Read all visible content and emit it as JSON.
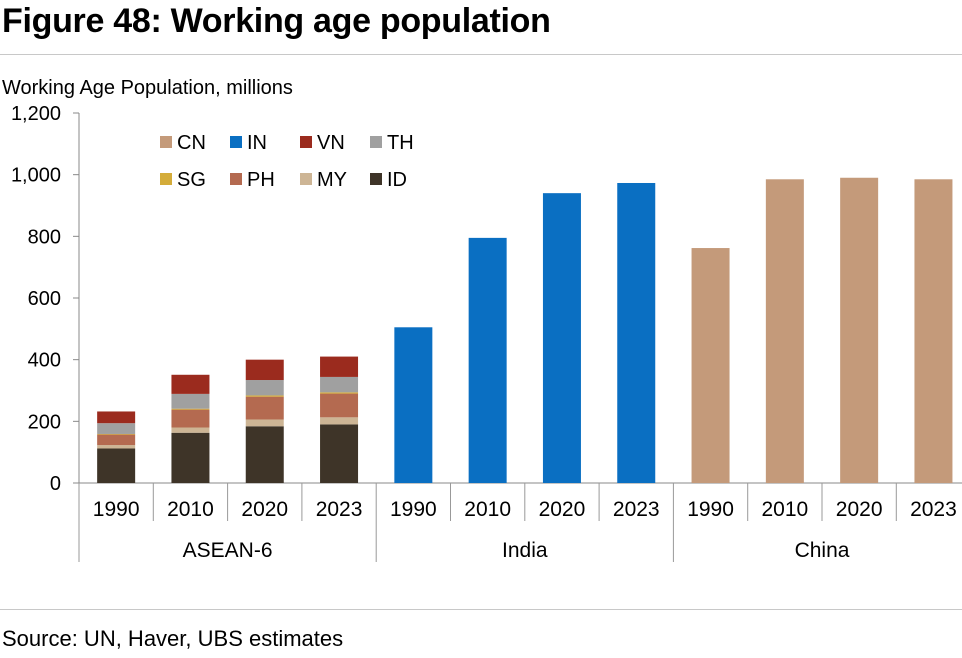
{
  "figure_title": "Figure 48: Working age population",
  "source": "Source: UN, Haver, UBS estimates",
  "colors": {
    "CN": "#C49A7A",
    "IN": "#0A6FC2",
    "VN": "#9B2B1E",
    "TH": "#A0A0A0",
    "SG": "#D4AC3A",
    "PH": "#B46A50",
    "MY": "#CDB595",
    "ID": "#3E3428"
  },
  "chart_data": {
    "type": "bar",
    "stacked": true,
    "title": "",
    "ylabel": "Working Age Population, millions",
    "ylim": [
      0,
      1200
    ],
    "yticks": [
      "0",
      "200",
      "400",
      "600",
      "800",
      "1,000",
      "1,200"
    ],
    "grid": false,
    "legend_position": "top-left",
    "legend": [
      "CN",
      "IN",
      "VN",
      "TH",
      "SG",
      "PH",
      "MY",
      "ID"
    ],
    "groups": [
      {
        "name": "ASEAN-6",
        "bars": [
          {
            "year": "1990",
            "ID": 112,
            "MY": 11,
            "PH": 34,
            "SG": 2,
            "TH": 35,
            "VN": 38
          },
          {
            "year": "2010",
            "ID": 163,
            "MY": 17,
            "PH": 58,
            "SG": 3,
            "TH": 48,
            "VN": 62
          },
          {
            "year": "2020",
            "ID": 184,
            "MY": 22,
            "PH": 74,
            "SG": 4,
            "TH": 50,
            "VN": 66
          },
          {
            "year": "2023",
            "ID": 190,
            "MY": 23,
            "PH": 77,
            "SG": 4,
            "TH": 50,
            "VN": 66
          }
        ]
      },
      {
        "name": "India",
        "bars": [
          {
            "year": "1990",
            "IN": 505
          },
          {
            "year": "2010",
            "IN": 795
          },
          {
            "year": "2020",
            "IN": 940
          },
          {
            "year": "2023",
            "IN": 973
          }
        ]
      },
      {
        "name": "China",
        "bars": [
          {
            "year": "1990",
            "CN": 762
          },
          {
            "year": "2010",
            "CN": 985
          },
          {
            "year": "2020",
            "CN": 990
          },
          {
            "year": "2023",
            "CN": 985
          }
        ]
      }
    ]
  }
}
